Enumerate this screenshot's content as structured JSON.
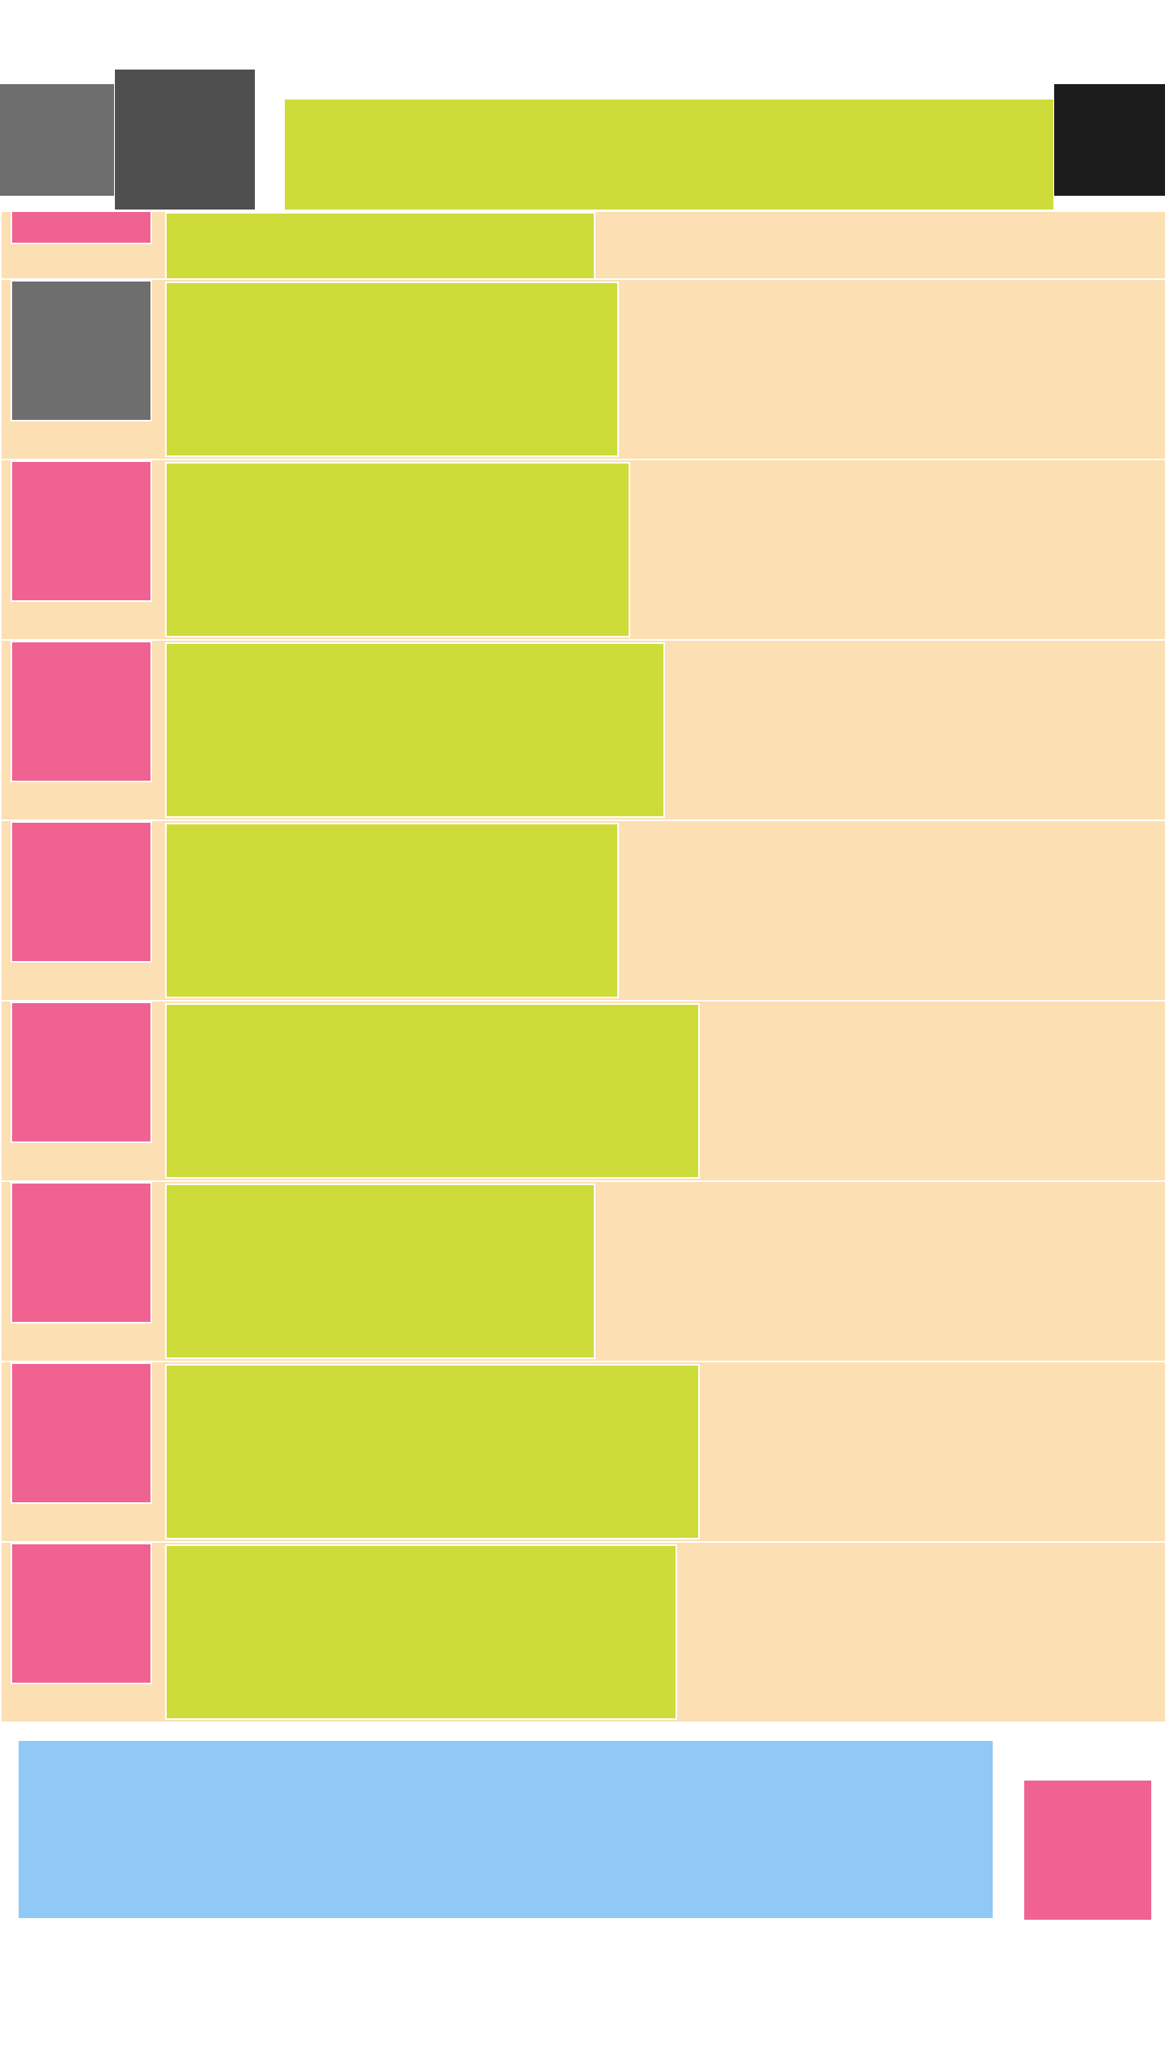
{
  "colors": {
    "background": "#ffffff",
    "list_background": "#fcdfb3",
    "content": "#cedc3a",
    "thumb": "#f06292",
    "thumb_placeholder": "#6e6e6e",
    "header_back": "#6e6e6e",
    "header_avatar": "#4f4f4f",
    "header_title": "#cedc3a",
    "header_menu": "#1c1c1c",
    "composer": "#90c9f5",
    "send_button": "#f06292"
  },
  "header": {
    "back_icon": "back-icon",
    "avatar_icon": "avatar-icon",
    "menu_icon": "more-menu-icon"
  },
  "list": {
    "items": [
      {
        "thumb_color": "#f06292",
        "content_fill": 0.37
      },
      {
        "thumb_color": "#6e6e6e",
        "content_fill": 0.39
      },
      {
        "thumb_color": "#f06292",
        "content_fill": 0.4
      },
      {
        "thumb_color": "#f06292",
        "content_fill": 0.43
      },
      {
        "thumb_color": "#f06292",
        "content_fill": 0.39
      },
      {
        "thumb_color": "#f06292",
        "content_fill": 0.46
      },
      {
        "thumb_color": "#f06292",
        "content_fill": 0.37
      },
      {
        "thumb_color": "#f06292",
        "content_fill": 0.46
      },
      {
        "thumb_color": "#f06292",
        "content_fill": 0.44
      }
    ]
  },
  "footer": {
    "send_icon": "send-icon"
  }
}
